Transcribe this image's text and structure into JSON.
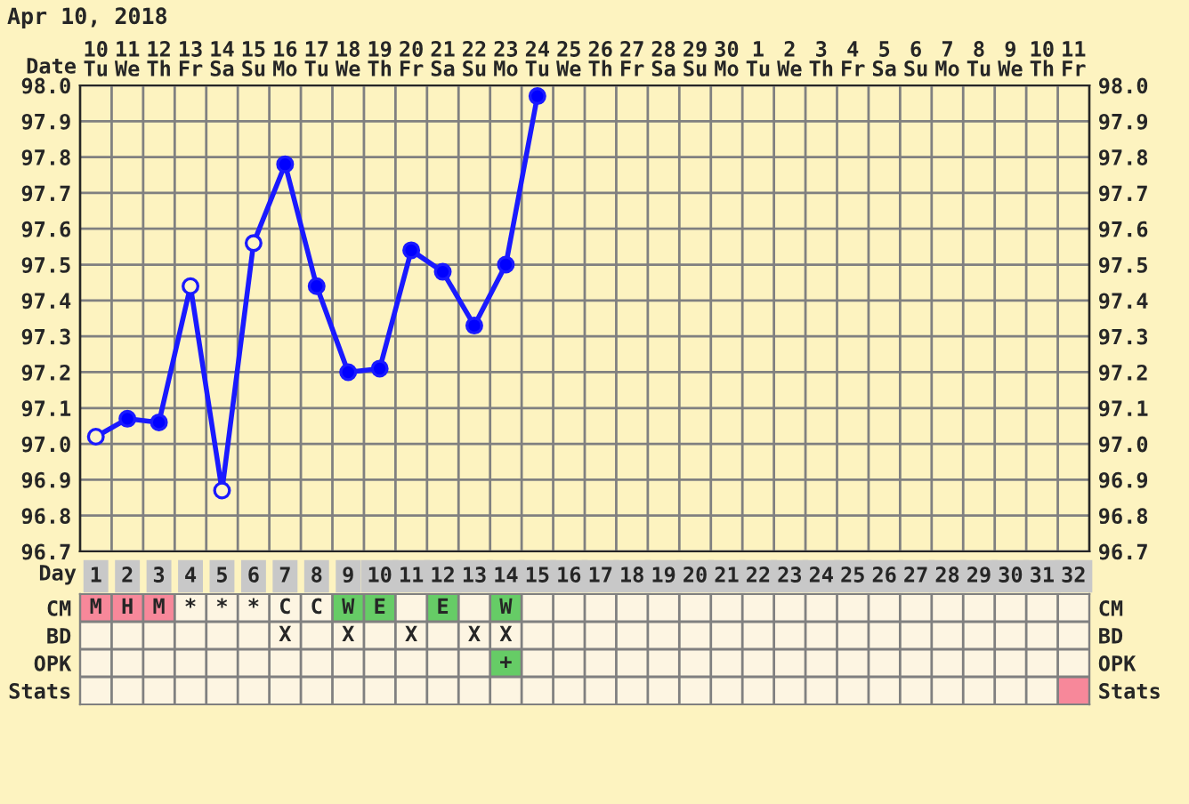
{
  "chart_data": [
    {
      "type": "line",
      "title": "Apr 10, 2018",
      "xlabel": "Day",
      "x2label": "Date",
      "categories": [
        "1",
        "2",
        "3",
        "4",
        "5",
        "6",
        "7",
        "8",
        "9",
        "10",
        "11",
        "12",
        "13",
        "14",
        "15",
        "16",
        "17",
        "18",
        "19",
        "20",
        "21",
        "22",
        "23",
        "24",
        "25",
        "26",
        "27",
        "28",
        "29",
        "30",
        "31",
        "32"
      ],
      "x2lim": [
        "2018-04-09T12:00",
        "2018-05-11T12:00"
      ],
      "x2ticks": [
        {
          "value": "2018-04-10",
          "label": "10\nTu"
        },
        {
          "value": "2018-04-11",
          "label": "11\nWe"
        },
        {
          "value": "2018-04-12",
          "label": "12\nTh"
        },
        {
          "value": "2018-04-13",
          "label": "13\nFr"
        },
        {
          "value": "2018-04-14",
          "label": "14\nSa"
        },
        {
          "value": "2018-04-15",
          "label": "15\nSu"
        },
        {
          "value": "2018-04-16",
          "label": "16\nMo"
        },
        {
          "value": "2018-04-17",
          "label": "17\nTu"
        },
        {
          "value": "2018-04-18",
          "label": "18\nWe"
        },
        {
          "value": "2018-04-19",
          "label": "19\nTh"
        },
        {
          "value": "2018-04-20",
          "label": "20\nFr"
        },
        {
          "value": "2018-04-21",
          "label": "21\nSa"
        },
        {
          "value": "2018-04-22",
          "label": "22\nSu"
        },
        {
          "value": "2018-04-23",
          "label": "23\nMo"
        },
        {
          "value": "2018-04-24",
          "label": "24\nTu"
        },
        {
          "value": "2018-04-25",
          "label": "25\nWe"
        },
        {
          "value": "2018-04-26",
          "label": "26\nTh"
        },
        {
          "value": "2018-04-27",
          "label": "27\nFr"
        },
        {
          "value": "2018-04-28",
          "label": "28\nSa"
        },
        {
          "value": "2018-04-29",
          "label": "29\nSu"
        },
        {
          "value": "2018-04-30",
          "label": "30\nMo"
        },
        {
          "value": "2018-05-01",
          "label": "1\nTu"
        },
        {
          "value": "2018-05-02",
          "label": "2\nWe"
        },
        {
          "value": "2018-05-03",
          "label": "3\nTh"
        },
        {
          "value": "2018-05-04",
          "label": "4\nFr"
        },
        {
          "value": "2018-05-05",
          "label": "5\nSa"
        },
        {
          "value": "2018-05-06",
          "label": "6\nSu"
        },
        {
          "value": "2018-05-07",
          "label": "7\nMo"
        },
        {
          "value": "2018-05-08",
          "label": "8\nTu"
        },
        {
          "value": "2018-05-09",
          "label": "9\nWe"
        },
        {
          "value": "2018-05-10",
          "label": "10\nTh"
        },
        {
          "value": "2018-05-11",
          "label": "11\nFr"
        }
      ],
      "ylim": [
        96.7,
        98.0
      ],
      "yticks": [
        96.7,
        96.8,
        96.9,
        {
          "value": 97,
          "label": "97.0"
        },
        97.1,
        97.2,
        97.3,
        97.4,
        97.5,
        97.6,
        97.7,
        97.8,
        97.9,
        {
          "value": 98,
          "label": "98.0"
        }
      ],
      "y2lim": [
        96.7,
        98.0
      ],
      "y2ticks": [
        96.7,
        96.8,
        96.9,
        {
          "value": 97,
          "label": "97.0"
        },
        97.1,
        97.2,
        97.3,
        97.4,
        97.5,
        97.6,
        97.7,
        97.8,
        97.9,
        {
          "value": 98,
          "label": "98.0"
        }
      ],
      "grid": true,
      "series": [
        {
          "type": "line",
          "marker": "none",
          "color": "#1a1aff",
          "values": [
            97.02,
            97.07,
            97.06,
            97.44,
            96.87,
            97.56,
            97.78,
            97.44,
            97.2,
            97.21,
            97.54,
            97.48,
            97.33,
            97.5,
            97.97,
            null,
            null,
            null,
            null,
            null,
            null,
            null,
            null,
            null,
            null,
            null,
            null,
            null,
            null,
            null,
            null,
            null
          ]
        },
        {
          "type": "scatter",
          "marker": "circle",
          "color": "#0000ff",
          "values": [
            null,
            97.07,
            97.06,
            null,
            null,
            null,
            97.78,
            97.44,
            97.2,
            97.21,
            97.54,
            97.48,
            97.33,
            97.5,
            97.97,
            null,
            null,
            null,
            null,
            null,
            null,
            null,
            null,
            null,
            null,
            null,
            null,
            null,
            null,
            null,
            null,
            null
          ]
        },
        {
          "type": "scatter",
          "marker": "circle",
          "color": "#fff5c8",
          "values": [
            97.02,
            null,
            null,
            97.44,
            96.87,
            97.56,
            null,
            null,
            null,
            null,
            null,
            null,
            null,
            null,
            null,
            null,
            null,
            null,
            null,
            null,
            null,
            null,
            null,
            null,
            null,
            null,
            null,
            null,
            null,
            null,
            null,
            null
          ]
        }
      ]
    },
    {
      "type": "other",
      "categories": [
        null,
        null,
        null,
        null,
        null,
        null,
        null,
        null,
        null,
        null,
        null,
        null,
        null,
        null,
        null,
        null,
        null,
        null,
        null,
        null,
        null,
        null,
        null,
        null,
        null,
        null,
        null,
        null,
        null,
        null,
        null,
        null
      ],
      "y_categories": [
        "CM",
        "BD",
        "OPK",
        "Stats"
      ],
      "y2_categories": [
        "CM",
        "BD",
        "OPK",
        "Stats"
      ],
      "cell_labels": [
        [
          "M",
          "H",
          "M",
          "*",
          "*",
          "*",
          "C",
          "C",
          "W",
          "E",
          null,
          "E",
          null,
          "W",
          null,
          null,
          null,
          null,
          null,
          null,
          null,
          null,
          null,
          null,
          null,
          null,
          null,
          null,
          null,
          null,
          null,
          null
        ],
        [
          null,
          null,
          null,
          null,
          null,
          null,
          "X",
          null,
          "X",
          null,
          "X",
          null,
          "X",
          "X",
          null,
          null,
          null,
          null,
          null,
          null,
          null,
          null,
          null,
          null,
          null,
          null,
          null,
          null,
          null,
          null,
          null,
          null
        ],
        [
          null,
          null,
          null,
          null,
          null,
          null,
          null,
          null,
          null,
          null,
          null,
          null,
          null,
          "+",
          null,
          null,
          null,
          null,
          null,
          null,
          null,
          null,
          null,
          null,
          null,
          null,
          null,
          null,
          null,
          null,
          null,
          null
        ],
        [
          null,
          null,
          null,
          null,
          null,
          null,
          null,
          null,
          null,
          null,
          null,
          null,
          null,
          null,
          null,
          null,
          null,
          null,
          null,
          null,
          null,
          null,
          null,
          null,
          null,
          null,
          null,
          null,
          null,
          null,
          null,
          null
        ]
      ],
      "colors": [
        [
          "#f7889a",
          "#f7889a",
          "#f7889a",
          null,
          null,
          null,
          null,
          null,
          "#66cc66",
          "#66cc66",
          null,
          "#66cc66",
          null,
          "#66cc66",
          null,
          null,
          null,
          null,
          null,
          null,
          null,
          null,
          null,
          null,
          null,
          null,
          null,
          null,
          null,
          null,
          null,
          null
        ],
        [
          null,
          null,
          null,
          null,
          null,
          null,
          null,
          null,
          null,
          null,
          null,
          null,
          null,
          null,
          null,
          null,
          null,
          null,
          null,
          null,
          null,
          null,
          null,
          null,
          null,
          null,
          null,
          null,
          null,
          null,
          null,
          null
        ],
        [
          null,
          null,
          null,
          null,
          null,
          null,
          null,
          null,
          null,
          null,
          null,
          null,
          null,
          "#66cc66",
          null,
          null,
          null,
          null,
          null,
          null,
          null,
          null,
          null,
          null,
          null,
          null,
          null,
          null,
          null,
          null,
          null,
          null
        ],
        [
          null,
          null,
          null,
          null,
          null,
          null,
          null,
          null,
          null,
          null,
          null,
          null,
          null,
          null,
          null,
          null,
          null,
          null,
          null,
          null,
          null,
          null,
          null,
          null,
          null,
          null,
          null,
          null,
          null,
          null,
          null,
          "#f7889a"
        ]
      ]
    }
  ]
}
